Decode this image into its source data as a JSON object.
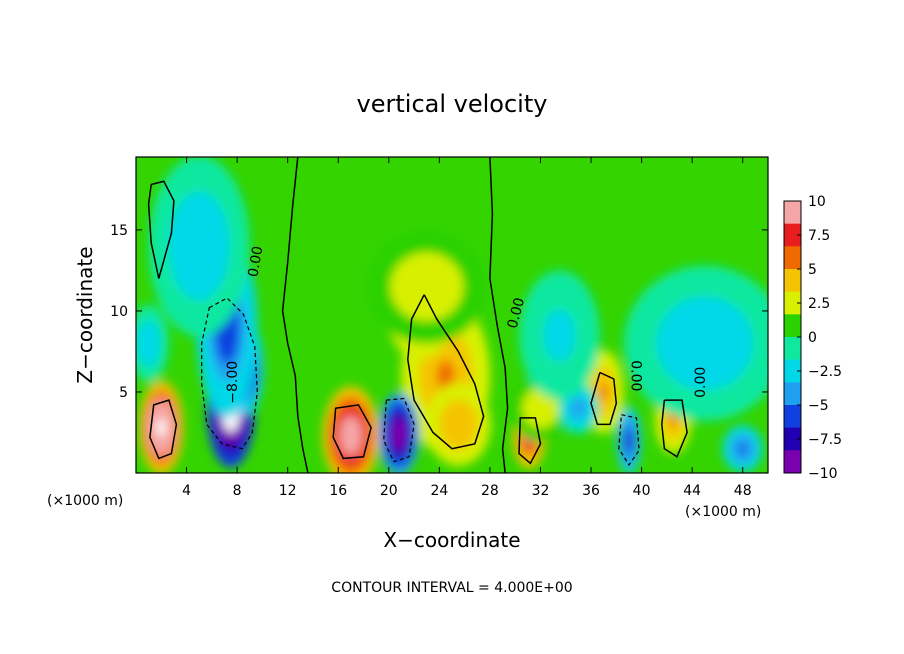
{
  "chart_data": {
    "type": "heatmap",
    "title": "vertical velocity",
    "xlabel": "X−coordinate",
    "ylabel": "Z−coordinate",
    "x_unit_label_left": "(×1000 m)",
    "x_unit_label_right": "(×1000 m)",
    "footer": "CONTOUR INTERVAL = 4.000E+00",
    "xlim": [
      0,
      50
    ],
    "ylim": [
      0,
      19.5
    ],
    "x_ticks": [
      4,
      8,
      12,
      16,
      20,
      24,
      28,
      32,
      36,
      40,
      44,
      48
    ],
    "x_tick_labels": [
      "4",
      "8",
      "12",
      "16",
      "20",
      "24",
      "28",
      "32",
      "36",
      "40",
      "44",
      "48"
    ],
    "y_ticks": [
      5,
      10,
      15
    ],
    "y_tick_labels": [
      "5",
      "10",
      "15"
    ],
    "colorbar": {
      "min": -10,
      "max": 10,
      "ticks": [
        10,
        7.5,
        5,
        2.5,
        0,
        -2.5,
        -5,
        -7.5,
        -10
      ],
      "tick_labels": [
        "10",
        "7.5",
        "5",
        "2.5",
        "0",
        "−2.5",
        "−5",
        "−7.5",
        "−10"
      ],
      "colors": [
        "#f5a6a6",
        "#e81e1e",
        "#f06a00",
        "#f5c400",
        "#d8f000",
        "#2ad200",
        "#10e8a0",
        "#00d8e8",
        "#20a0f0",
        "#1040e0",
        "#2000b0",
        "#7a00b0"
      ]
    },
    "contour_labels": [
      {
        "text": "0.00",
        "x": 9.8,
        "z": 13.0,
        "rotate": -80
      },
      {
        "text": "−8.00",
        "x": 8.0,
        "z": 5.6,
        "rotate": -90
      },
      {
        "text": "0.00",
        "x": 30.4,
        "z": 9.8,
        "rotate": -75
      },
      {
        "text": "0.00",
        "x": 39.2,
        "z": 6.0,
        "rotate": 90
      },
      {
        "text": "0.00",
        "x": 45.0,
        "z": 5.6,
        "rotate": -90
      }
    ],
    "features": [
      {
        "x": 2.0,
        "z": 2.8,
        "sx": 1.1,
        "sz": 1.8,
        "w": 12
      },
      {
        "x": 17.0,
        "z": 2.3,
        "sx": 1.4,
        "sz": 1.9,
        "w": 10.5
      },
      {
        "x": 24.5,
        "z": 6.0,
        "sx": 2.2,
        "sz": 3.0,
        "w": 5.5
      },
      {
        "x": 22.5,
        "z": 9.6,
        "sx": 1.6,
        "sz": 1.6,
        "w": 4.5
      },
      {
        "x": 25.5,
        "z": 3.0,
        "sx": 1.6,
        "sz": 1.6,
        "w": 5
      },
      {
        "x": 31.1,
        "z": 2.2,
        "sx": 0.8,
        "sz": 1.2,
        "w": 9
      },
      {
        "x": 37.0,
        "z": 5.0,
        "sx": 1.0,
        "sz": 1.6,
        "w": 5.5
      },
      {
        "x": 42.5,
        "z": 3.3,
        "sx": 0.9,
        "sz": 1.3,
        "w": 5.5
      },
      {
        "x": 23.0,
        "z": 11.5,
        "sx": 3.0,
        "sz": 2.2,
        "w": 2.5
      },
      {
        "x": 32.0,
        "z": 4.0,
        "sx": 1.5,
        "sz": 1.3,
        "w": 2.5
      },
      {
        "x": 7.5,
        "z": 4.0,
        "sx": 1.2,
        "sz": 2.3,
        "w": -14
      },
      {
        "x": 8.8,
        "z": 6.5,
        "sx": 0.8,
        "sz": 1.8,
        "w": -8
      },
      {
        "x": 7.2,
        "z": 9.0,
        "sx": 1.5,
        "sz": 3.5,
        "w": -6
      },
      {
        "x": 5.0,
        "z": 14.0,
        "sx": 2.5,
        "sz": 3.5,
        "w": -2.5
      },
      {
        "x": 20.8,
        "z": 2.4,
        "sx": 1.0,
        "sz": 1.6,
        "w": -11
      },
      {
        "x": 39.0,
        "z": 2.0,
        "sx": 0.6,
        "sz": 1.3,
        "w": -7
      },
      {
        "x": 35.0,
        "z": 4.0,
        "sx": 1.0,
        "sz": 1.0,
        "w": -4
      },
      {
        "x": 48.0,
        "z": 1.5,
        "sx": 1.0,
        "sz": 0.9,
        "w": -5
      },
      {
        "x": 45.0,
        "z": 8.0,
        "sx": 4.0,
        "sz": 3.0,
        "w": -2.5
      },
      {
        "x": 1.0,
        "z": 8.0,
        "sx": 1.0,
        "sz": 1.5,
        "w": -2.5
      },
      {
        "x": 33.5,
        "z": 8.5,
        "sx": 2.0,
        "sz": 2.5,
        "w": -2.2
      }
    ],
    "zero_contours": [
      [
        [
          1.2,
          17.8
        ],
        [
          2.2,
          18.0
        ],
        [
          3.0,
          16.8
        ],
        [
          2.8,
          14.8
        ],
        [
          1.8,
          12.0
        ],
        [
          1.2,
          14.2
        ],
        [
          1.0,
          16.6
        ],
        [
          1.2,
          17.8
        ]
      ],
      [
        [
          12.8,
          19.5
        ],
        [
          12.4,
          16.5
        ],
        [
          12.0,
          13.0
        ],
        [
          11.6,
          10.0
        ],
        [
          12.0,
          8.0
        ],
        [
          12.6,
          6.0
        ],
        [
          12.8,
          3.5
        ],
        [
          13.2,
          1.5
        ],
        [
          13.6,
          0
        ]
      ],
      [
        [
          28.0,
          19.5
        ],
        [
          28.2,
          16.0
        ],
        [
          28.0,
          12.0
        ],
        [
          28.6,
          9.0
        ],
        [
          29.2,
          6.5
        ],
        [
          29.4,
          4.0
        ],
        [
          29.0,
          1.5
        ],
        [
          29.2,
          0
        ]
      ],
      [
        [
          36.7,
          6.2
        ],
        [
          37.8,
          5.8
        ],
        [
          38.0,
          4.3
        ],
        [
          37.5,
          3.0
        ],
        [
          36.5,
          3.0
        ],
        [
          36.0,
          4.3
        ],
        [
          36.7,
          6.2
        ]
      ],
      [
        [
          41.8,
          4.5
        ],
        [
          43.2,
          4.5
        ],
        [
          43.6,
          2.5
        ],
        [
          42.8,
          1.0
        ],
        [
          41.8,
          1.5
        ],
        [
          41.6,
          3.0
        ],
        [
          41.8,
          4.5
        ]
      ],
      [
        [
          22.8,
          11.0
        ],
        [
          23.8,
          9.5
        ],
        [
          25.5,
          7.5
        ],
        [
          26.8,
          5.5
        ],
        [
          27.5,
          3.5
        ],
        [
          26.8,
          1.8
        ],
        [
          25.0,
          1.5
        ],
        [
          23.5,
          2.5
        ],
        [
          22.0,
          4.5
        ],
        [
          21.5,
          7.0
        ],
        [
          21.8,
          9.5
        ],
        [
          22.8,
          11.0
        ]
      ]
    ],
    "dashed_contours": [
      [
        [
          5.8,
          10.2
        ],
        [
          7.2,
          10.8
        ],
        [
          8.5,
          9.8
        ],
        [
          9.4,
          7.8
        ],
        [
          9.6,
          5.0
        ],
        [
          9.2,
          2.5
        ],
        [
          8.4,
          1.5
        ],
        [
          6.8,
          1.8
        ],
        [
          5.6,
          3.0
        ],
        [
          5.2,
          5.5
        ],
        [
          5.2,
          8.0
        ],
        [
          5.8,
          10.2
        ]
      ],
      [
        [
          19.8,
          4.5
        ],
        [
          21.2,
          4.6
        ],
        [
          22.0,
          3.0
        ],
        [
          21.6,
          1.0
        ],
        [
          20.4,
          0.7
        ],
        [
          19.6,
          2.0
        ],
        [
          19.8,
          4.5
        ]
      ],
      [
        [
          38.4,
          3.6
        ],
        [
          39.6,
          3.4
        ],
        [
          39.8,
          1.4
        ],
        [
          39.0,
          0.5
        ],
        [
          38.2,
          1.5
        ],
        [
          38.4,
          3.6
        ]
      ]
    ],
    "solid_closed_contours": [
      [
        [
          1.4,
          4.2
        ],
        [
          2.6,
          4.5
        ],
        [
          3.2,
          3.0
        ],
        [
          2.8,
          1.2
        ],
        [
          1.8,
          0.9
        ],
        [
          1.1,
          2.2
        ],
        [
          1.4,
          4.2
        ]
      ],
      [
        [
          15.8,
          4.0
        ],
        [
          17.6,
          4.2
        ],
        [
          18.6,
          2.8
        ],
        [
          18.0,
          1.0
        ],
        [
          16.4,
          0.9
        ],
        [
          15.6,
          2.2
        ],
        [
          15.8,
          4.0
        ]
      ],
      [
        [
          30.4,
          3.4
        ],
        [
          31.6,
          3.4
        ],
        [
          32.0,
          1.8
        ],
        [
          31.2,
          0.6
        ],
        [
          30.3,
          1.2
        ],
        [
          30.4,
          3.4
        ]
      ]
    ]
  }
}
